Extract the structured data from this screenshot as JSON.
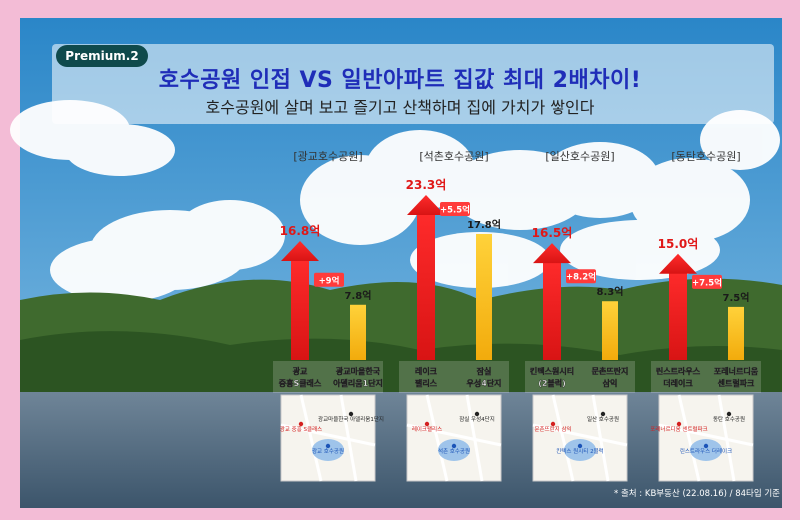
{
  "badge": "Premium.2",
  "title": "호수공원 인접 VS 일반아파트 집값 최대 2배차이!",
  "subtitle": "호수공원에 살며 보고 즐기고 산책하며 집에 가치가 쌓인다",
  "source": "* 출처 : KB부동산 (22.08.16) / 84타입 기준",
  "colors": {
    "near_lake": "#ee2222",
    "regular": "#f7c21e",
    "diff_badge": "#ff3b3b",
    "group_label": "#333333"
  },
  "chart_data": {
    "type": "bar",
    "unit": "억",
    "groups": [
      {
        "label": "[광교호수공원]",
        "near": {
          "name": "광교 중흥S클래스",
          "value": 16.8,
          "label": "16.8억"
        },
        "regular": {
          "name": "광교마을한국 아델리움1단지",
          "value": 7.8,
          "label": "7.8억"
        },
        "diff_label": "+9억",
        "map_labels": [
          "광교 중흥 S클래스",
          "광교 호수공원",
          "광교마을한국 아델리움1단지"
        ]
      },
      {
        "label": "[석촌호수공원]",
        "near": {
          "name": "레이크 팰리스",
          "value": 23.3,
          "label": "23.3억"
        },
        "regular": {
          "name": "잠실 우성4단지",
          "value": 17.8,
          "label": "17.8억"
        },
        "diff_label": "+5.5억",
        "map_labels": [
          "레이크팰리스",
          "석촌 호수공원",
          "잠실 우성4단지"
        ]
      },
      {
        "label": "[일산호수공원]",
        "near": {
          "name": "킨텍스원시티 (2블럭)",
          "value": 16.5,
          "label": "16.5억"
        },
        "regular": {
          "name": "문촌뜨란지 삼익",
          "value": 8.3,
          "label": "8.3억"
        },
        "diff_label": "+8.2억",
        "map_labels": [
          "문촌뜨란지 삼익",
          "킨텍스 원시티 2블럭",
          "일산 호수공원"
        ]
      },
      {
        "label": "[동탄호수공원]",
        "near": {
          "name": "린스트라우스 더레이크",
          "value": 15.0,
          "label": "15.0억"
        },
        "regular": {
          "name": "포레너르디움 센트럴파크",
          "value": 7.5,
          "label": "7.5억"
        },
        "diff_label": "+7.5억",
        "map_labels": [
          "포레너르디움 센트럴파크",
          "린스트라우스 더레이크",
          "동탄 호수공원"
        ]
      }
    ]
  }
}
